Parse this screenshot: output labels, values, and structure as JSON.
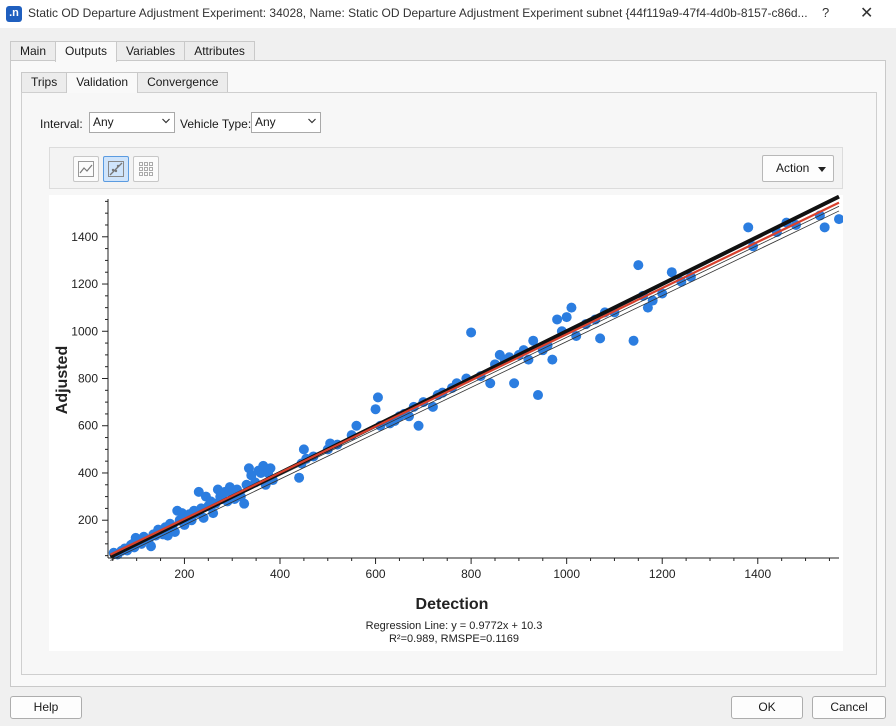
{
  "window": {
    "title": "Static OD Departure Adjustment Experiment: 34028, Name: Static OD Departure Adjustment Experiment subnet  {44f119a9-47f4-4d0b-8157-c86d...",
    "app_icon_text": ".n",
    "help_glyph": "?",
    "close_glyph": "✕"
  },
  "main_tabs": [
    {
      "label": "Main"
    },
    {
      "label": "Outputs"
    },
    {
      "label": "Variables"
    },
    {
      "label": "Attributes"
    }
  ],
  "sub_tabs": [
    {
      "label": "Trips"
    },
    {
      "label": "Validation"
    },
    {
      "label": "Convergence"
    }
  ],
  "filters": {
    "interval_label": "Interval:",
    "interval_value": "Any",
    "vehicle_type_label": "Vehicle Type:",
    "vehicle_type_value": "Any"
  },
  "toolbar": {
    "buttons": [
      {
        "icon": "line-chart-icon",
        "active": false
      },
      {
        "icon": "scatter-regression-icon",
        "active": true
      },
      {
        "icon": "grid-matrix-icon",
        "active": false
      }
    ],
    "action_label": "Action"
  },
  "footer": {
    "help_label": "Help",
    "ok_label": "OK",
    "cancel_label": "Cancel"
  },
  "colors": {
    "points": "#2b7de0",
    "regression_line": "#d8412d"
  },
  "chart_data": {
    "type": "scatter",
    "xlabel": "Detection",
    "ylabel": "Adjusted",
    "xlim": [
      40,
      1570
    ],
    "ylim": [
      40,
      1560
    ],
    "xticks": [
      200,
      400,
      600,
      800,
      1000,
      1200,
      1400
    ],
    "yticks": [
      200,
      400,
      600,
      800,
      1000,
      1200,
      1400
    ],
    "regression": {
      "slope": 0.9772,
      "intercept": 10.3,
      "r2": 0.989,
      "rmspe": 0.1169
    },
    "annotation_line1": "Regression Line: y = 0.9772x + 10.3",
    "annotation_line2": "R²=0.989, RMSPE=0.1169",
    "points": [
      [
        52,
        62
      ],
      [
        60,
        55
      ],
      [
        68,
        70
      ],
      [
        75,
        80
      ],
      [
        80,
        72
      ],
      [
        88,
        95
      ],
      [
        92,
        100
      ],
      [
        95,
        85
      ],
      [
        98,
        125
      ],
      [
        105,
        110
      ],
      [
        110,
        100
      ],
      [
        115,
        130
      ],
      [
        120,
        120
      ],
      [
        125,
        115
      ],
      [
        130,
        90
      ],
      [
        135,
        140
      ],
      [
        140,
        135
      ],
      [
        145,
        160
      ],
      [
        150,
        150
      ],
      [
        155,
        140
      ],
      [
        160,
        170
      ],
      [
        165,
        135
      ],
      [
        170,
        185
      ],
      [
        175,
        170
      ],
      [
        180,
        150
      ],
      [
        185,
        240
      ],
      [
        190,
        200
      ],
      [
        195,
        230
      ],
      [
        200,
        180
      ],
      [
        205,
        210
      ],
      [
        210,
        225
      ],
      [
        215,
        200
      ],
      [
        220,
        240
      ],
      [
        225,
        230
      ],
      [
        230,
        320
      ],
      [
        235,
        250
      ],
      [
        240,
        210
      ],
      [
        245,
        300
      ],
      [
        250,
        260
      ],
      [
        255,
        280
      ],
      [
        260,
        230
      ],
      [
        265,
        270
      ],
      [
        270,
        330
      ],
      [
        275,
        300
      ],
      [
        280,
        290
      ],
      [
        285,
        320
      ],
      [
        290,
        280
      ],
      [
        295,
        340
      ],
      [
        300,
        310
      ],
      [
        305,
        290
      ],
      [
        310,
        330
      ],
      [
        318,
        300
      ],
      [
        325,
        270
      ],
      [
        330,
        350
      ],
      [
        335,
        420
      ],
      [
        340,
        390
      ],
      [
        348,
        360
      ],
      [
        355,
        410
      ],
      [
        360,
        400
      ],
      [
        365,
        430
      ],
      [
        370,
        350
      ],
      [
        375,
        400
      ],
      [
        380,
        420
      ],
      [
        385,
        370
      ],
      [
        440,
        380
      ],
      [
        445,
        440
      ],
      [
        450,
        500
      ],
      [
        455,
        460
      ],
      [
        470,
        470
      ],
      [
        500,
        500
      ],
      [
        505,
        525
      ],
      [
        520,
        520
      ],
      [
        550,
        560
      ],
      [
        560,
        600
      ],
      [
        600,
        670
      ],
      [
        605,
        720
      ],
      [
        610,
        600
      ],
      [
        630,
        610
      ],
      [
        640,
        620
      ],
      [
        650,
        640
      ],
      [
        660,
        650
      ],
      [
        670,
        640
      ],
      [
        680,
        680
      ],
      [
        690,
        600
      ],
      [
        700,
        700
      ],
      [
        720,
        680
      ],
      [
        730,
        730
      ],
      [
        740,
        740
      ],
      [
        760,
        760
      ],
      [
        770,
        780
      ],
      [
        790,
        800
      ],
      [
        800,
        995
      ],
      [
        820,
        810
      ],
      [
        840,
        780
      ],
      [
        850,
        860
      ],
      [
        860,
        900
      ],
      [
        870,
        880
      ],
      [
        880,
        890
      ],
      [
        890,
        780
      ],
      [
        900,
        900
      ],
      [
        910,
        920
      ],
      [
        920,
        880
      ],
      [
        930,
        960
      ],
      [
        940,
        730
      ],
      [
        950,
        920
      ],
      [
        960,
        940
      ],
      [
        970,
        880
      ],
      [
        980,
        1050
      ],
      [
        990,
        1000
      ],
      [
        1000,
        1060
      ],
      [
        1010,
        1100
      ],
      [
        1020,
        980
      ],
      [
        1040,
        1030
      ],
      [
        1060,
        1050
      ],
      [
        1070,
        970
      ],
      [
        1080,
        1080
      ],
      [
        1100,
        1080
      ],
      [
        1140,
        960
      ],
      [
        1150,
        1280
      ],
      [
        1160,
        1150
      ],
      [
        1170,
        1100
      ],
      [
        1180,
        1130
      ],
      [
        1200,
        1160
      ],
      [
        1220,
        1250
      ],
      [
        1240,
        1210
      ],
      [
        1260,
        1230
      ],
      [
        1380,
        1440
      ],
      [
        1390,
        1360
      ],
      [
        1440,
        1420
      ],
      [
        1460,
        1460
      ],
      [
        1480,
        1450
      ],
      [
        1530,
        1490
      ],
      [
        1540,
        1440
      ],
      [
        1570,
        1475
      ]
    ]
  }
}
